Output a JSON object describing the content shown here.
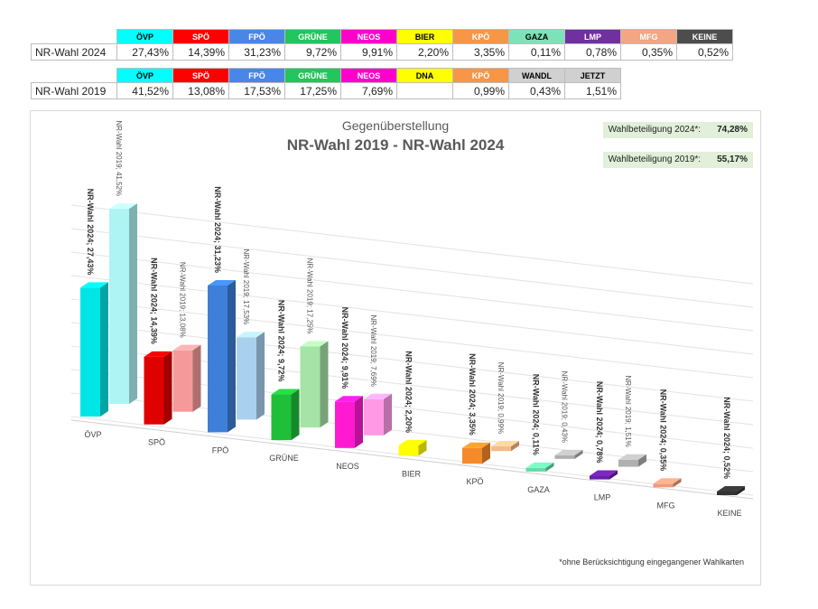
{
  "table_2024": {
    "label": "NR-Wahl 2024",
    "headers": [
      {
        "name": "ÖVP",
        "bg": "#00ffff",
        "fg": "#000000"
      },
      {
        "name": "SPÖ",
        "bg": "#ff0000",
        "fg": "#ffffff"
      },
      {
        "name": "FPÖ",
        "bg": "#4a86e8",
        "fg": "#ffffff"
      },
      {
        "name": "GRÜNE",
        "bg": "#22c55e",
        "fg": "#ffffff"
      },
      {
        "name": "NEOS",
        "bg": "#ff00cc",
        "fg": "#ffffff"
      },
      {
        "name": "BIER",
        "bg": "#ffff00",
        "fg": "#000000"
      },
      {
        "name": "KPÖ",
        "bg": "#f79646",
        "fg": "#ffffff"
      },
      {
        "name": "GAZA",
        "bg": "#7ee2b8",
        "fg": "#000000"
      },
      {
        "name": "LMP",
        "bg": "#7030a0",
        "fg": "#ffffff"
      },
      {
        "name": "MFG",
        "bg": "#f4a582",
        "fg": "#ffffff"
      },
      {
        "name": "KEINE",
        "bg": "#4d4d4d",
        "fg": "#ffffff"
      }
    ],
    "values": [
      "27,43%",
      "14,39%",
      "31,23%",
      "9,72%",
      "9,91%",
      "2,20%",
      "3,35%",
      "0,11%",
      "0,78%",
      "0,35%",
      "0,52%"
    ]
  },
  "table_2019": {
    "label": "NR-Wahl 2019",
    "headers": [
      {
        "name": "ÖVP",
        "bg": "#00ffff",
        "fg": "#000000"
      },
      {
        "name": "SPÖ",
        "bg": "#ff0000",
        "fg": "#ffffff"
      },
      {
        "name": "FPÖ",
        "bg": "#4a86e8",
        "fg": "#ffffff"
      },
      {
        "name": "GRÜNE",
        "bg": "#22c55e",
        "fg": "#ffffff"
      },
      {
        "name": "NEOS",
        "bg": "#ff00cc",
        "fg": "#ffffff"
      },
      {
        "name": "DNA",
        "bg": "#ffff00",
        "fg": "#000000"
      },
      {
        "name": "KPÖ",
        "bg": "#f79646",
        "fg": "#ffffff"
      },
      {
        "name": "WANDL",
        "bg": "#d0d0d0",
        "fg": "#000000"
      },
      {
        "name": "JETZT",
        "bg": "#d0d0d0",
        "fg": "#000000"
      }
    ],
    "values": [
      "41,52%",
      "13,08%",
      "17,53%",
      "17,25%",
      "7,69%",
      "",
      "0,99%",
      "0,43%",
      "1,51%"
    ]
  },
  "info": {
    "turnout_2024_label": "Wahlbeteiligung 2024*:",
    "turnout_2024_value": "74,28%",
    "turnout_2019_label": "Wahlbeteiligung 2019*:",
    "turnout_2019_value": "55,17%",
    "footnote": "*ohne Berücksichtigung eingegangener Wahlkarten"
  },
  "chart_data": {
    "type": "bar",
    "title": "Gegenüberstellung",
    "subtitle": "NR-Wahl 2019 - NR-Wahl 2024",
    "categories": [
      "ÖVP",
      "SPÖ",
      "FPÖ",
      "GRÜNE",
      "NEOS",
      "BIER",
      "KPÖ",
      "GAZA",
      "LMP",
      "MFG",
      "KEINE"
    ],
    "colors_2024": [
      "#00e5e5",
      "#e00000",
      "#3d7fd9",
      "#1fbf3a",
      "#ff19d0",
      "#ffff00",
      "#f58a2b",
      "#66d9a8",
      "#6a1fa8",
      "#f09a7a",
      "#333333"
    ],
    "colors_2019": [
      "#aef4f4",
      "#f59a9a",
      "#a9d0ef",
      "#a6e3a6",
      "#ff99e6",
      "#ffff99",
      "#f7b98a",
      "#b0b0b0",
      "#b0b0b0",
      "#f4c2a8",
      "#9a9a9a"
    ],
    "series": [
      {
        "name": "NR-Wahl 2024",
        "values": [
          27.43,
          14.39,
          31.23,
          9.72,
          9.91,
          2.2,
          3.35,
          0.11,
          0.78,
          0.35,
          0.52
        ],
        "labels": [
          "NR-Wahl 2024; 27,43%",
          "NR-Wahl 2024; 14,39%",
          "NR-Wahl 2024; 31,23%",
          "NR-Wahl 2024; 9,72%",
          "NR-Wahl 2024; 9,91%",
          "NR-Wahl 2024; 2,20%",
          "NR-Wahl 2024; 3,35%",
          "NR-Wahl 2024; 0,11%",
          "NR-Wahl 2024; 0,78%",
          "NR-Wahl 2024; 0,35%",
          "NR-Wahl 2024; 0,52%"
        ]
      },
      {
        "name": "NR-Wahl 2019",
        "values": [
          41.52,
          13.08,
          17.53,
          17.25,
          7.69,
          null,
          0.99,
          0.43,
          1.51,
          null,
          null
        ],
        "labels": [
          "NR-Wahl 2019; 41,52%",
          "NR-Wahl 2019; 13,08%",
          "NR-Wahl 2019; 17,53%",
          "NR-Wahl 2019; 17,25%",
          "NR-Wahl 2019; 7,69%",
          null,
          "NR-Wahl 2019; 0,99%",
          "NR-Wahl 2019; 0,43%",
          "NR-Wahl 2019; 1,51%",
          null,
          null
        ]
      }
    ],
    "ylim": [
      0,
      45
    ],
    "grid": true
  }
}
